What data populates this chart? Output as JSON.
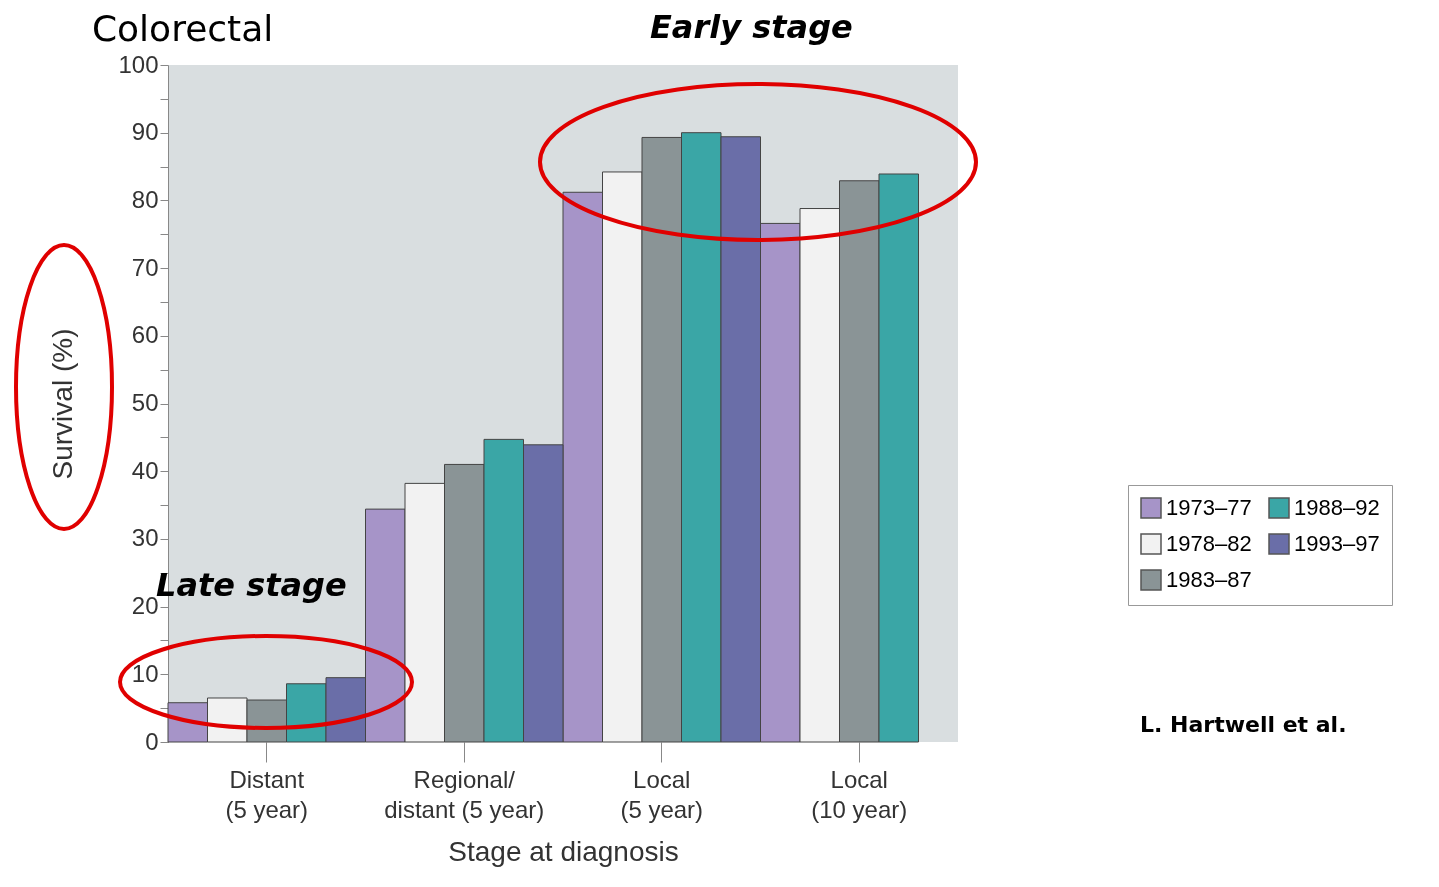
{
  "chart_data": {
    "type": "bar",
    "title": "Colorectal",
    "xlabel": "Stage at diagnosis",
    "ylabel": "Survival (%)",
    "categories": [
      "Distant\n(5 year)",
      "Regional/\ndistant (5 year)",
      "Local\n(5 year)",
      "Local\n(10 year)"
    ],
    "series": [
      {
        "name": "1973–77",
        "color": "#a694c8",
        "values": [
          5.8,
          34.4,
          81.2,
          76.6
        ]
      },
      {
        "name": "1978–82",
        "color": "#f2f2f2",
        "values": [
          6.5,
          38.2,
          84.2,
          78.8
        ]
      },
      {
        "name": "1983–87",
        "color": "#8a9496",
        "values": [
          6.2,
          41.0,
          89.3,
          82.9
        ]
      },
      {
        "name": "1988–92",
        "color": "#3aa6a6",
        "values": [
          8.6,
          44.7,
          90.0,
          83.9
        ]
      },
      {
        "name": "1993–97",
        "color": "#6a6ea8",
        "values": [
          9.5,
          43.9,
          89.4,
          null
        ]
      }
    ],
    "ylim": [
      0,
      100
    ],
    "yticks": [
      0,
      {
        "value": 5,
        "label": null
      },
      10,
      {
        "value": 15,
        "label": null
      },
      20,
      {
        "value": 25,
        "label": null
      },
      30,
      {
        "value": 35,
        "label": null
      },
      40,
      {
        "value": 45,
        "label": null
      },
      50,
      {
        "value": 55,
        "label": null
      },
      60,
      {
        "value": 65,
        "label": null
      },
      70,
      {
        "value": 75,
        "label": null
      },
      80,
      {
        "value": 85,
        "label": null
      },
      90,
      {
        "value": 95,
        "label": null
      },
      100
    ],
    "legend": "right",
    "annotations": [
      "Early stage",
      "Late stage",
      "L. Hartwell et al."
    ]
  }
}
